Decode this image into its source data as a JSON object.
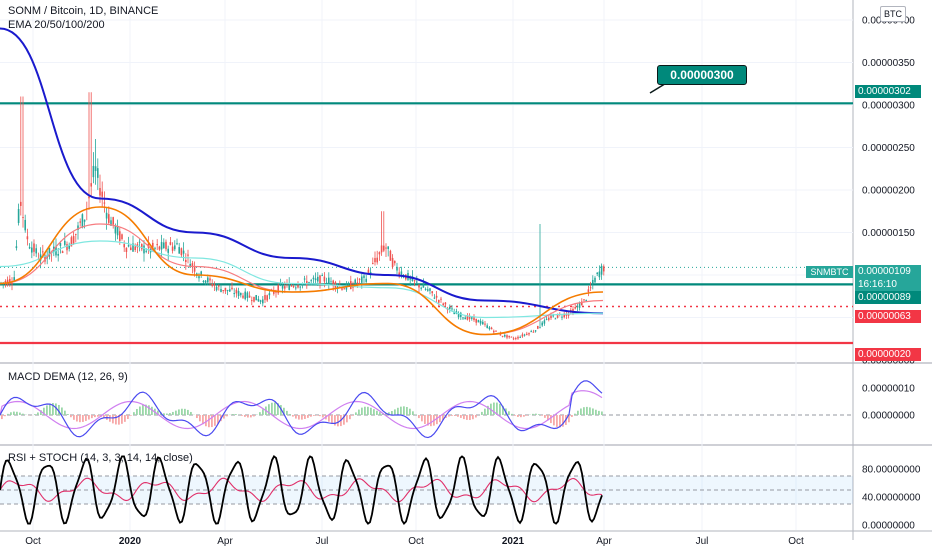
{
  "header": {
    "pair_title": "SONM / Bitcoin, 1D, BINANCE",
    "ema_label": "EMA 20/50/100/200",
    "currency_button": "BTC",
    "macd_label": "MACD DEMA (12, 26, 9)",
    "rsi_label": "RSI + STOCH (14, 3, 3, 14, 14, close)"
  },
  "callout": {
    "text": "0.00000300"
  },
  "price_tags": {
    "symbol": "SNMBTC",
    "last_price": "0.00000109",
    "countdown": "16:16:10",
    "level_high": "0.00000302",
    "level_mid": "0.00000089",
    "level_dotted": "0.00000063",
    "level_low": "0.00000020"
  },
  "colors": {
    "teal": "#00897b",
    "red": "#f23645",
    "ema_blue": "#1a1acd",
    "ema_orange": "#f57c00",
    "ema_cyan": "#7fe7e0",
    "ema_red": "#f77c80",
    "macd_line": "#4a4af0",
    "macd_signal": "#d080f0",
    "rsi_line": "#e0306a",
    "stoch_line": "#000000",
    "candle_up": "#26a69a",
    "candle_down": "#ef5350"
  },
  "chart_data": [
    {
      "type": "candlestick",
      "title": "SONM / Bitcoin, 1D, BINANCE",
      "y_axis_ticks": [
        "0.00000400",
        "0.00000350",
        "0.00000300",
        "0.00000250",
        "0.00000200",
        "0.00000150",
        "0.00000100",
        "0.00000050",
        "0.00000000"
      ],
      "ylim": [
        0,
        4e-06
      ],
      "x_axis_ticks": [
        "Oct",
        "2020",
        "Apr",
        "Jul",
        "Oct",
        "2021",
        "Apr",
        "Jul",
        "Oct"
      ],
      "horizontal_levels": [
        {
          "value": 3.02e-06,
          "style": "solid"
        },
        {
          "value": 8.9e-07,
          "style": "solid"
        },
        {
          "value": 6.3e-07,
          "style": "dotted"
        },
        {
          "value": 2e-07,
          "style": "solid"
        }
      ],
      "last_price": 1.09e-06,
      "series": [
        {
          "name": "EMA 200",
          "x": [
            "2019-09",
            "2019-12",
            "2020-03",
            "2020-06",
            "2020-09",
            "2020-12",
            "2021-03"
          ],
          "values": [
            3.9e-06,
            1.9e-06,
            1.5e-06,
            1.2e-06,
            1e-06,
            7e-07,
            5.5e-07
          ]
        },
        {
          "name": "EMA 100",
          "x": [
            "2019-09",
            "2019-12",
            "2020-03",
            "2020-06",
            "2020-09",
            "2020-12",
            "2021-03"
          ],
          "values": [
            1.1e-06,
            1.4e-06,
            1.2e-06,
            9e-07,
            8.5e-07,
            5e-07,
            5.5e-07
          ]
        },
        {
          "name": "EMA 50",
          "x": [
            "2019-09",
            "2019-12",
            "2020-03",
            "2020-06",
            "2020-09",
            "2020-12",
            "2021-03"
          ],
          "values": [
            9e-07,
            1.6e-06,
            1.1e-06,
            8e-07,
            9e-07,
            3e-07,
            7e-07
          ]
        },
        {
          "name": "EMA 20",
          "x": [
            "2019-09",
            "2019-12",
            "2020-03",
            "2020-06",
            "2020-09",
            "2020-12",
            "2021-03"
          ],
          "values": [
            9e-07,
            1.8e-06,
            1e-06,
            8e-07,
            9e-07,
            3e-07,
            8e-07
          ]
        }
      ]
    },
    {
      "type": "line",
      "title": "MACD DEMA (12, 26, 9)",
      "y_axis_ticks": [
        "0.00000010",
        "0.00000000"
      ]
    },
    {
      "type": "line",
      "title": "RSI + STOCH (14, 3, 3, 14, 14, close)",
      "y_axis_ticks": [
        "80.00000000",
        "40.00000000",
        "0.00000000"
      ],
      "ylim": [
        0,
        100
      ],
      "band": [
        30,
        70
      ]
    }
  ]
}
